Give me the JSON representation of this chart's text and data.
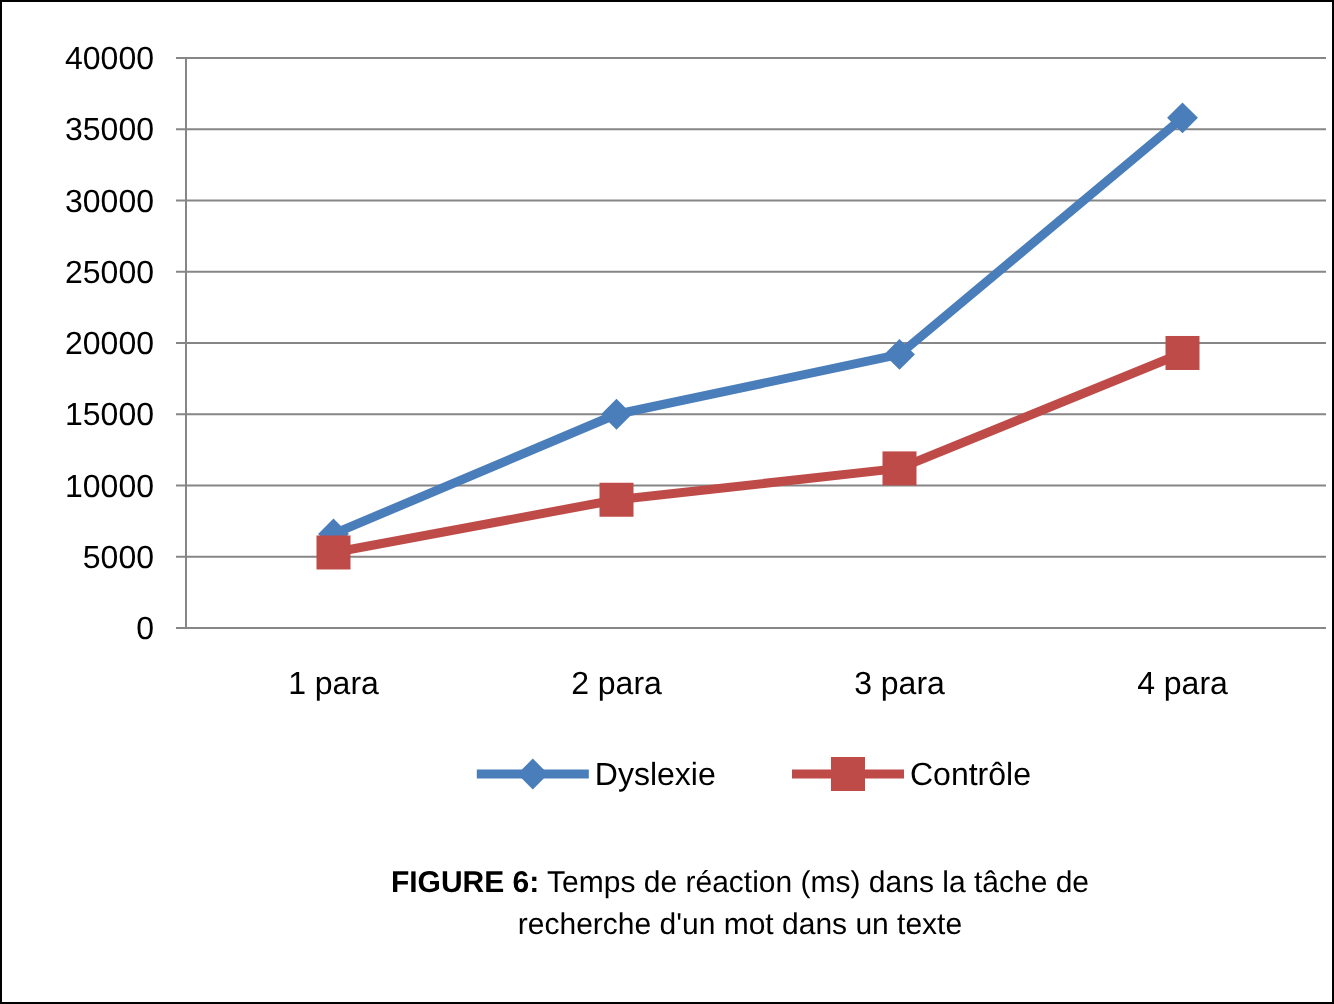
{
  "chart_data": {
    "type": "line",
    "title": "FIGURE 6: Temps de réaction (ms) dans la tâche de recherche d'un mot dans un texte",
    "categories": [
      "1 para",
      "2 para",
      "3 para",
      "4 para"
    ],
    "series": [
      {
        "name": "Dyslexie",
        "color": "#4a7ebb",
        "marker": "diamond",
        "values": [
          6600,
          15000,
          19200,
          35800
        ]
      },
      {
        "name": "Contrôle",
        "color": "#be4b48",
        "marker": "square",
        "values": [
          5300,
          9000,
          11200,
          19300
        ]
      }
    ],
    "ylim": [
      0,
      40000
    ],
    "yticks": [
      0,
      5000,
      10000,
      15000,
      20000,
      25000,
      30000,
      35000,
      40000
    ],
    "grid": "y",
    "legend": "bottom",
    "line_style": "solid"
  }
}
